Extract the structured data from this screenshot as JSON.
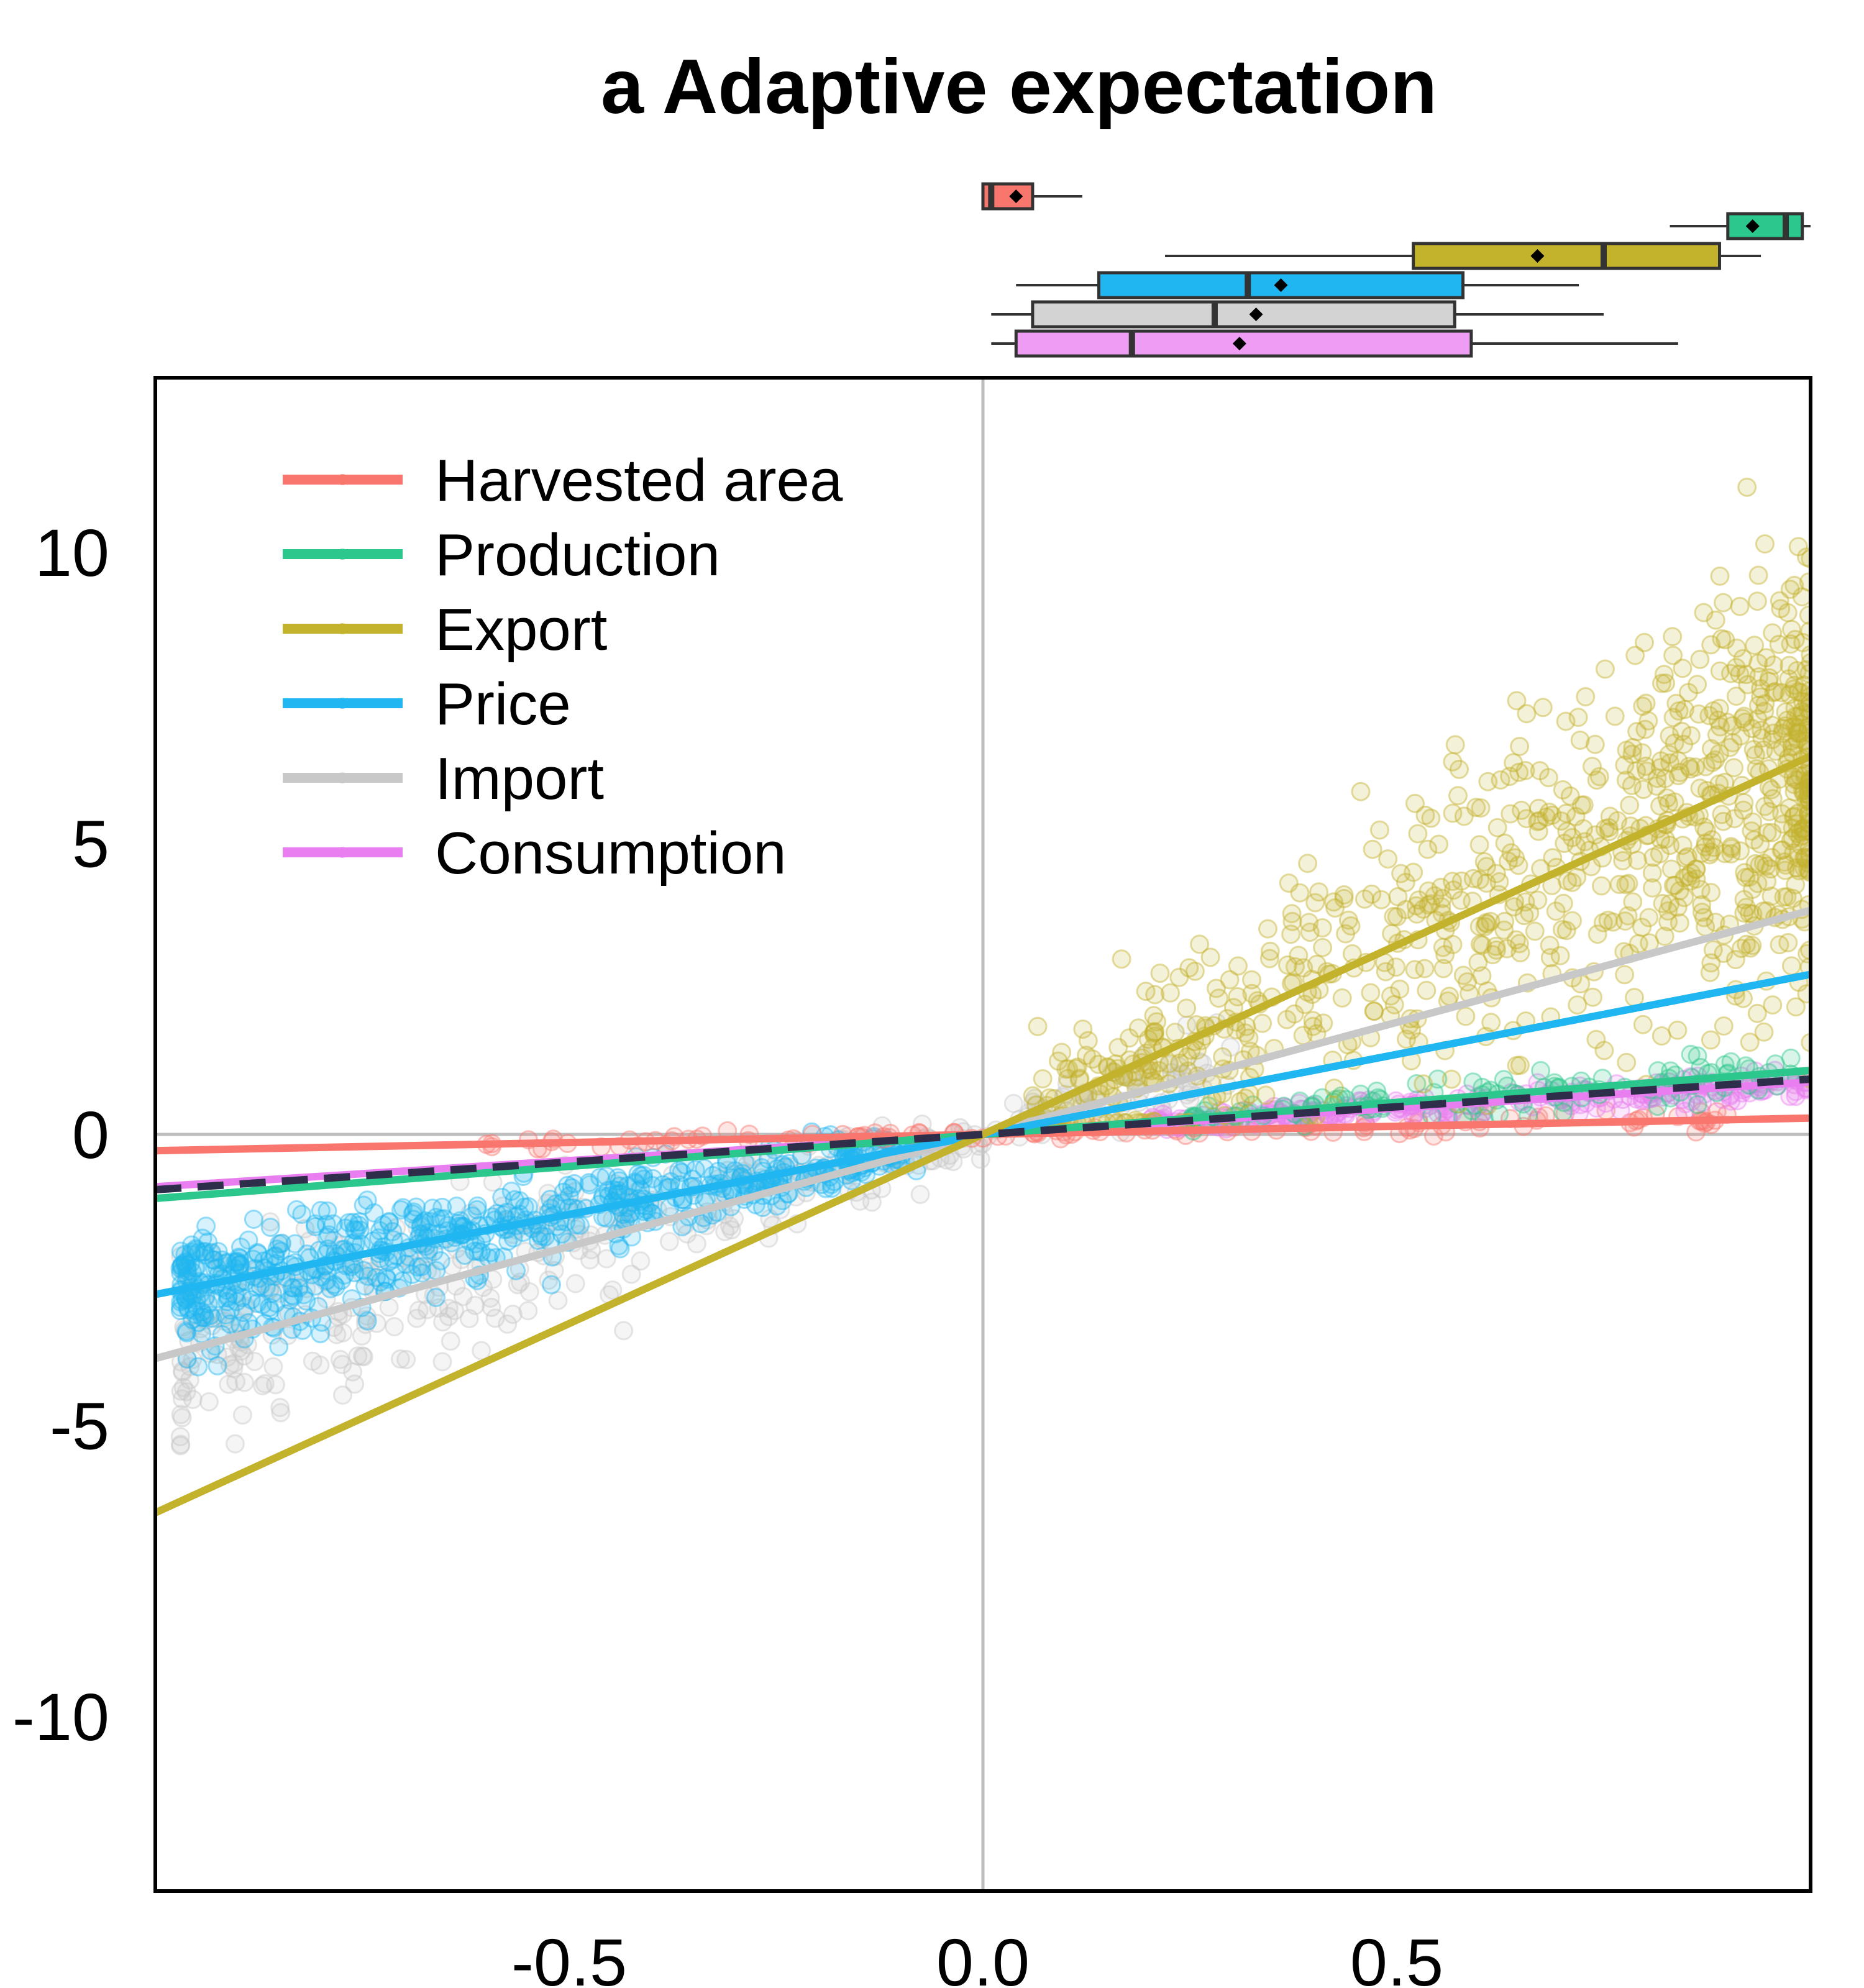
{
  "chart_data": {
    "type": "scatter",
    "title": "a Adaptive expectation",
    "xlabel": "",
    "ylabel": "",
    "xlim": [
      -1.0,
      1.0
    ],
    "ylim": [
      -13,
      13
    ],
    "xticks": [
      -0.5,
      0.0,
      0.5
    ],
    "xtick_labels": [
      "-0.5",
      "0.0",
      "0.5"
    ],
    "yticks": [
      -10,
      -5,
      0,
      5,
      10
    ],
    "ytick_labels": [
      "-10",
      "-5",
      "0",
      "5",
      "10"
    ],
    "grid": false,
    "reference_lines": {
      "x": 0,
      "y": 0,
      "color": "#bdbdbd"
    },
    "legend_position": "top-left",
    "series": [
      {
        "name": "Harvested area",
        "color": "#f8766d",
        "slope": 0.28,
        "x_range": [
          -1.0,
          1.0
        ],
        "points_x_range": [
          -0.6,
          0.9
        ],
        "points_spread": 0.15
      },
      {
        "name": "Production",
        "color": "#2cc78c",
        "slope": 1.1,
        "x_range": [
          -1.0,
          1.0
        ],
        "points_x_range": [
          0.25,
          1.0
        ],
        "points_spread": 0.3
      },
      {
        "name": "Export",
        "color": "#c3b22c",
        "slope": 6.5,
        "x_range": [
          -1.0,
          1.0
        ],
        "points_x_range": [
          0.05,
          1.0
        ],
        "points_spread": 2.4
      },
      {
        "name": "Price",
        "color": "#1fb6f1",
        "slope": 2.75,
        "x_range": [
          -1.0,
          1.0
        ],
        "points_x_range": [
          -0.97,
          -0.08
        ],
        "points_spread": 0.7
      },
      {
        "name": "Import",
        "color": "#c8c8c8",
        "slope": 3.85,
        "x_range": [
          -1.0,
          1.0
        ],
        "points_x_range": [
          -0.97,
          0.3
        ],
        "points_spread": 1.2
      },
      {
        "name": "Consumption",
        "color": "#e87ef0",
        "slope": 0.9,
        "x_range": [
          -1.0,
          1.0
        ],
        "points_x_range": [
          0.2,
          1.0
        ],
        "points_spread": 0.2
      }
    ],
    "overall_fit": {
      "style": "dashed",
      "color": "#2e2e4a",
      "slope": 0.95
    },
    "boxplots": [
      {
        "series": "Harvested area",
        "color": "#f8766d",
        "whisker_low": 0.0,
        "q1": 0.0,
        "median": 0.01,
        "q3": 0.06,
        "whisker_high": 0.12,
        "mean": 0.04
      },
      {
        "series": "Production",
        "color": "#2cc78c",
        "whisker_low": 0.83,
        "q1": 0.9,
        "median": 0.97,
        "q3": 0.99,
        "whisker_high": 1.0,
        "mean": 0.93
      },
      {
        "series": "Export",
        "color": "#c3b22c",
        "whisker_low": 0.22,
        "q1": 0.52,
        "median": 0.75,
        "q3": 0.89,
        "whisker_high": 0.94,
        "mean": 0.67
      },
      {
        "series": "Price",
        "color": "#1fb6f1",
        "whisker_low": 0.04,
        "q1": 0.14,
        "median": 0.32,
        "q3": 0.58,
        "whisker_high": 0.72,
        "mean": 0.36
      },
      {
        "series": "Import",
        "color": "#d3d3d3",
        "whisker_low": 0.01,
        "q1": 0.06,
        "median": 0.28,
        "q3": 0.57,
        "whisker_high": 0.75,
        "mean": 0.33
      },
      {
        "series": "Consumption",
        "color": "#ee9cf4",
        "whisker_low": 0.01,
        "q1": 0.04,
        "median": 0.18,
        "q3": 0.59,
        "whisker_high": 0.84,
        "mean": 0.31
      }
    ]
  }
}
